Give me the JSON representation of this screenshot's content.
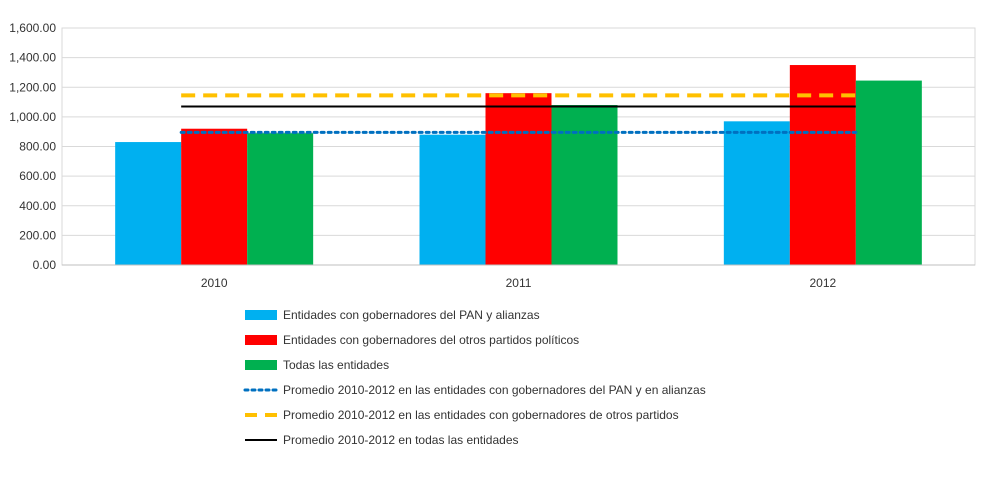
{
  "colors": {
    "pan": "#00B0F0",
    "otros": "#FF0000",
    "todas": "#00B050",
    "avg_pan": "#0070C0",
    "avg_otros": "#FFC000",
    "avg_todas": "#000000",
    "grid": "#D9D9D9"
  },
  "chart_data": {
    "type": "bar",
    "categories": [
      "2010",
      "2011",
      "2012"
    ],
    "y_ticks": [
      "0.00",
      "200.00",
      "400.00",
      "600.00",
      "800.00",
      "1,000.00",
      "1,200.00",
      "1,400.00",
      "1,600.00"
    ],
    "ylim": [
      0,
      1600
    ],
    "grid": true,
    "legend_position": "bottom",
    "series": [
      {
        "name": "Entidades con gobernadores del PAN y alianzas",
        "values": [
          830,
          880,
          970
        ]
      },
      {
        "name": "Entidades con gobernadores del otros partidos políticos",
        "values": [
          920,
          1160,
          1350
        ]
      },
      {
        "name": "Todas las entidades",
        "values": [
          890,
          1080,
          1245
        ]
      }
    ],
    "lines": [
      {
        "name": "Promedio 2010-2012 en las entidades con gobernadores del PAN y en alianzas",
        "value": 895,
        "style": "dotted"
      },
      {
        "name": "Promedio 2010-2012 en las entidades con gobernadores de otros partidos",
        "value": 1145,
        "style": "dashed"
      },
      {
        "name": "Promedio 2010-2012 en todas las entidades",
        "value": 1070,
        "style": "solid"
      }
    ]
  }
}
